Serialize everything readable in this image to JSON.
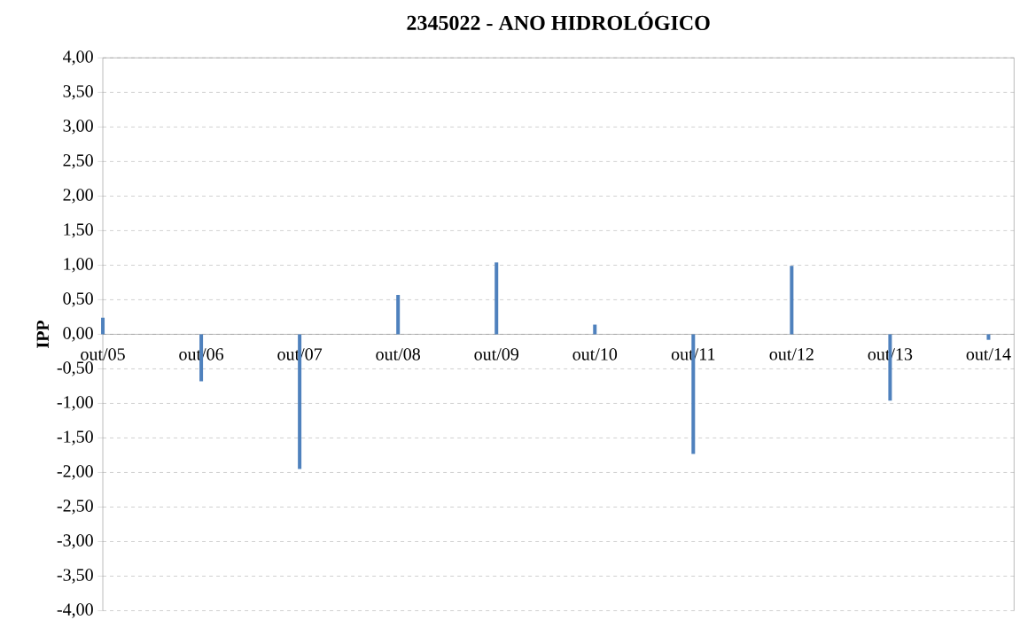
{
  "chart_data": {
    "type": "bar",
    "title": "2345022 - ANO HIDROLÓGICO",
    "ylabel": "IPP",
    "categories": [
      "out/05",
      "out/06",
      "out/07",
      "out/08",
      "out/09",
      "out/10",
      "out/11",
      "out/12",
      "out/13",
      "out/14"
    ],
    "values": [
      0.24,
      -0.68,
      -1.95,
      0.57,
      1.04,
      0.14,
      -1.73,
      0.99,
      -0.96,
      -0.08
    ],
    "color": "#4f81bd",
    "ylim": [
      -4,
      4
    ],
    "yticks": [
      {
        "value": -4,
        "label": "-4,00"
      },
      {
        "value": -3.5,
        "label": "-3,50"
      },
      {
        "value": -3,
        "label": "-3,00"
      },
      {
        "value": -2.5,
        "label": "-2,50"
      },
      {
        "value": -2,
        "label": "-2,00"
      },
      {
        "value": -1.5,
        "label": "-1,50"
      },
      {
        "value": -1,
        "label": "-1,00"
      },
      {
        "value": -0.5,
        "label": "-0,50"
      },
      {
        "value": 0,
        "label": "0,00"
      },
      {
        "value": 0.5,
        "label": "0,50"
      },
      {
        "value": 1,
        "label": "1,00"
      },
      {
        "value": 1.5,
        "label": "1,50"
      },
      {
        "value": 2,
        "label": "2,00"
      },
      {
        "value": 2.5,
        "label": "2,50"
      },
      {
        "value": 3,
        "label": "3,00"
      },
      {
        "value": 3.5,
        "label": "3,50"
      },
      {
        "value": 4,
        "label": "4,00"
      }
    ],
    "grid": "y"
  }
}
